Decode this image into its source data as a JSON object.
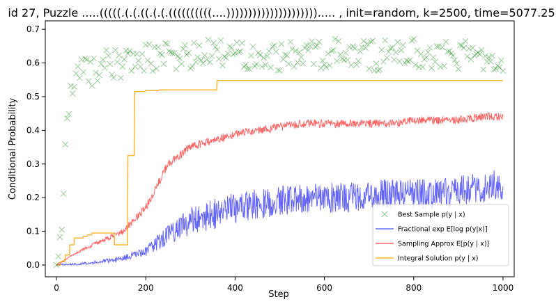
{
  "chart_data": {
    "type": "line",
    "title": "id 27, Puzzle .....(((((.(.(.((.(.(.((((((((((....)))))))))))))))))))))..... , init=random, k=2500, time=5077.25",
    "xlabel": "Step",
    "ylabel": "Conditional Probability",
    "xlim": [
      -25,
      1025
    ],
    "ylim": [
      -0.035,
      0.725
    ],
    "xticks": [
      0,
      200,
      400,
      600,
      800,
      1000
    ],
    "yticks": [
      0.0,
      0.1,
      0.2,
      0.3,
      0.4,
      0.5,
      0.6,
      0.7
    ],
    "xtick_labels": [
      "0",
      "200",
      "400",
      "600",
      "800",
      "1000"
    ],
    "ytick_labels": [
      "0.0",
      "0.1",
      "0.2",
      "0.3",
      "0.4",
      "0.5",
      "0.6",
      "0.7"
    ],
    "grid": false,
    "legend_position": "lower-right",
    "series": [
      {
        "name": "Best Sample p(y | x)",
        "kind": "scatter",
        "marker": "x",
        "color": "#008000",
        "x": [
          0,
          5,
          10,
          15,
          20,
          25,
          30,
          40,
          50,
          60,
          80,
          100,
          150,
          200,
          300,
          400,
          500,
          600,
          700,
          800,
          900,
          1000
        ],
        "y": [
          0.0,
          0.02,
          0.08,
          0.2,
          0.35,
          0.45,
          0.5,
          0.52,
          0.58,
          0.6,
          0.57,
          0.6,
          0.6,
          0.62,
          0.62,
          0.63,
          0.62,
          0.63,
          0.62,
          0.63,
          0.62,
          0.62
        ]
      },
      {
        "name": "Fractional exp E[log p(y|x)]",
        "kind": "line",
        "color": "#0000ff",
        "x": [
          0,
          50,
          100,
          150,
          200,
          250,
          300,
          350,
          400,
          450,
          500,
          550,
          600,
          650,
          700,
          750,
          800,
          850,
          900,
          950,
          1000
        ],
        "y": [
          0.0,
          0.003,
          0.01,
          0.02,
          0.04,
          0.09,
          0.13,
          0.15,
          0.17,
          0.18,
          0.19,
          0.2,
          0.2,
          0.2,
          0.21,
          0.21,
          0.21,
          0.21,
          0.22,
          0.23,
          0.24
        ]
      },
      {
        "name": "Sampling Approx E[p(y | x)]",
        "kind": "line",
        "color": "#ff0000",
        "x": [
          0,
          50,
          100,
          150,
          200,
          250,
          300,
          350,
          400,
          450,
          500,
          550,
          600,
          650,
          700,
          750,
          800,
          850,
          900,
          950,
          1000
        ],
        "y": [
          0.0,
          0.04,
          0.07,
          0.1,
          0.17,
          0.3,
          0.35,
          0.37,
          0.39,
          0.4,
          0.41,
          0.42,
          0.42,
          0.42,
          0.42,
          0.42,
          0.43,
          0.43,
          0.43,
          0.44,
          0.44
        ]
      },
      {
        "name": "Integral Solution p(y | x)",
        "kind": "line",
        "color": "#ffa500",
        "x": [
          0,
          10,
          20,
          30,
          40,
          60,
          70,
          80,
          130,
          160,
          175,
          200,
          230,
          355,
          360,
          1000
        ],
        "y": [
          0.0,
          0.01,
          0.03,
          0.06,
          0.08,
          0.085,
          0.09,
          0.095,
          0.06,
          0.325,
          0.515,
          0.518,
          0.52,
          0.52,
          0.548,
          0.548
        ]
      }
    ]
  }
}
